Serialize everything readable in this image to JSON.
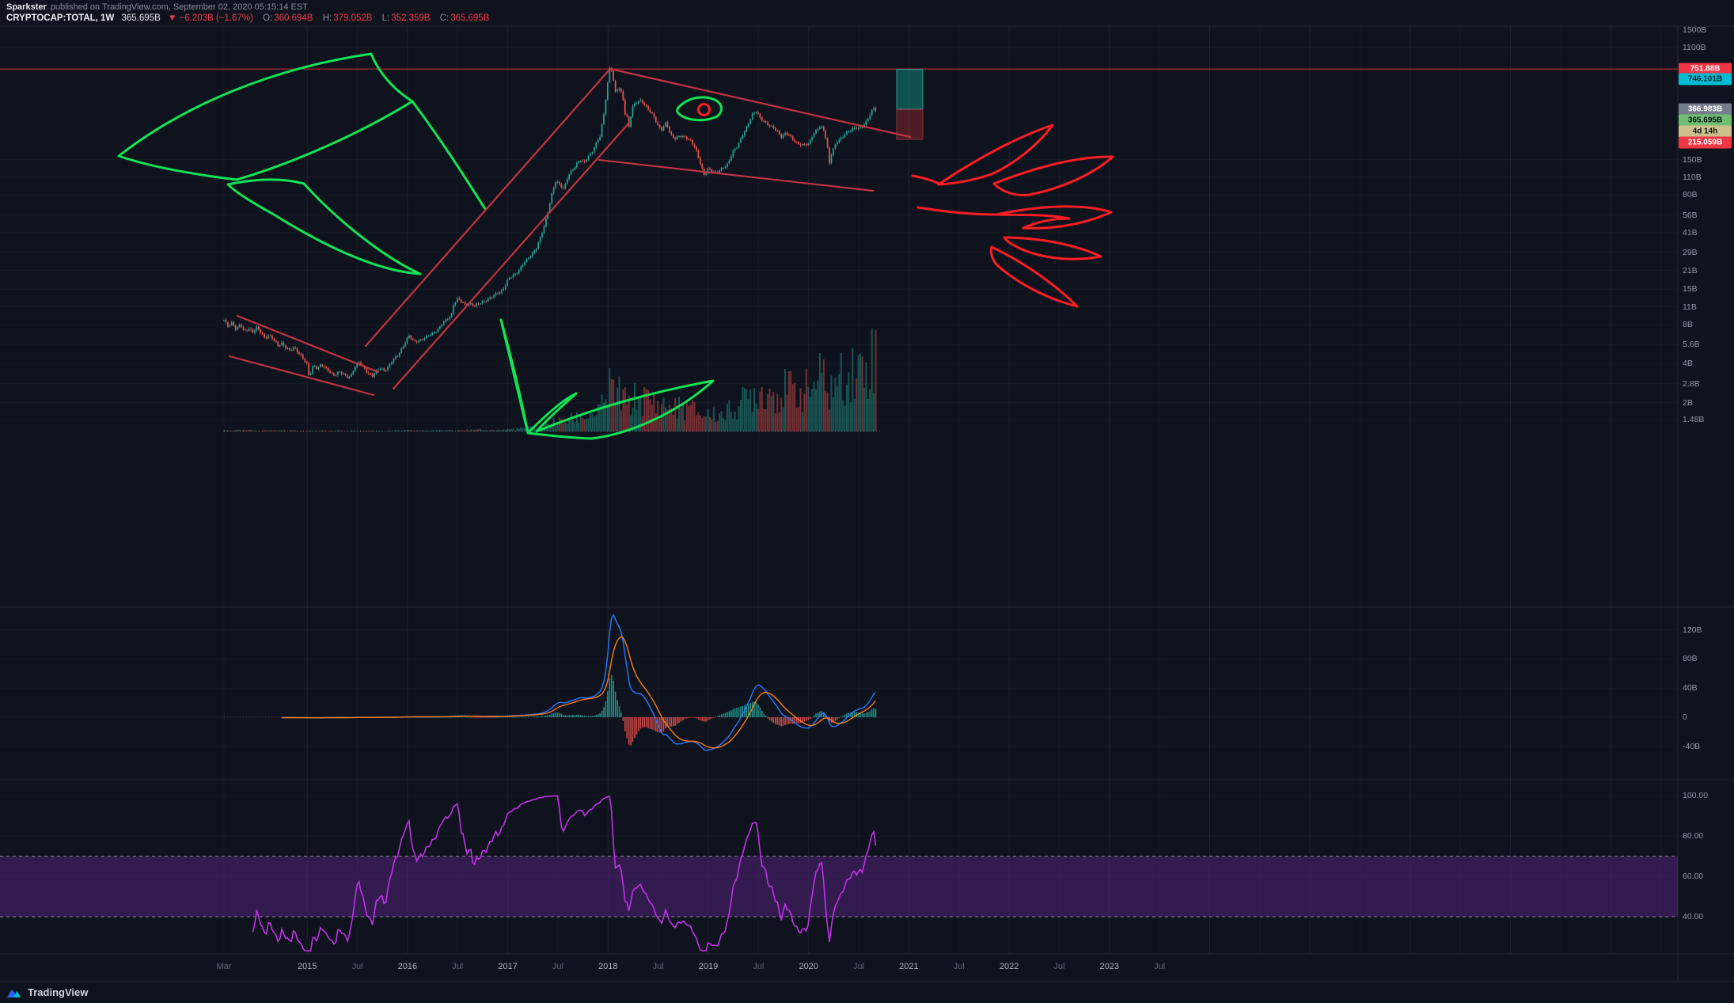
{
  "header": {
    "author": "Sparkster",
    "published_text": "published on TradingView.com, September 02, 2020 05:15:14 EST",
    "symbol_title": "CRYPTOCAP:TOTAL, 1W",
    "last_price": "365.695B",
    "change_text": "▼ −6.203B (−1.67%)",
    "ohlc": [
      {
        "label": "O:",
        "value": "360.694B"
      },
      {
        "label": "H:",
        "value": "379.052B"
      },
      {
        "label": "L:",
        "value": "352.359B"
      },
      {
        "label": "C:",
        "value": "365.695B"
      }
    ]
  },
  "footer": {
    "brand": "TradingView"
  },
  "colors": {
    "background": "#0f131d",
    "candle_up": "#26a69a",
    "candle_down": "#ef5350",
    "macd_line": "#2979ff",
    "macd_signal": "#f57f17",
    "rsi_line": "#c231e8",
    "rsi_band_fill": "rgba(87,35,129,0.5)",
    "drawing_green": "#10e455",
    "drawing_red_flame": "#fb1d23",
    "drawing_red_channel": "#c23440",
    "horizontal_line_red": "rgba(242,54,69,0.8)"
  },
  "price_scale": {
    "ticks": [
      {
        "v": 1500,
        "label": "1500B"
      },
      {
        "v": 1100,
        "label": "1100B"
      },
      {
        "v": 150,
        "label": "150B"
      },
      {
        "v": 110,
        "label": "110B"
      },
      {
        "v": 80,
        "label": "80B"
      },
      {
        "v": 56,
        "label": "56B"
      },
      {
        "v": 41,
        "label": "41B"
      },
      {
        "v": 29,
        "label": "29B"
      },
      {
        "v": 21,
        "label": "21B"
      },
      {
        "v": 15,
        "label": "15B"
      },
      {
        "v": 11,
        "label": "11B"
      },
      {
        "v": 8,
        "label": "8B"
      },
      {
        "v": 5.6,
        "label": "5.6B"
      },
      {
        "v": 4,
        "label": "4B"
      },
      {
        "v": 2.8,
        "label": "2.8B"
      },
      {
        "v": 2,
        "label": "2B"
      },
      {
        "v": 1.48,
        "label": "1.48B"
      }
    ],
    "tags": [
      {
        "label": "751.88B",
        "bg": "#f23645",
        "fg": "#ffffff",
        "name": "horizontal-line-price-tag"
      },
      {
        "label": "746.101B",
        "bg": "#00bcd4",
        "fg": "#06212a",
        "name": "position-target-price-tag"
      },
      {
        "label": "366.983B",
        "bg": "#757d8c",
        "fg": "#ffffff",
        "name": "position-entry-price-tag"
      },
      {
        "label": "365.695B",
        "bg": "#6fbf73",
        "fg": "#0c1016",
        "name": "last-price-tag"
      },
      {
        "label": "4d 14h",
        "bg": "#cfc08b",
        "fg": "#0c1016",
        "name": "bar-countdown-tag"
      },
      {
        "label": "215.059B",
        "bg": "#f23645",
        "fg": "#ffffff",
        "name": "position-stop-price-tag"
      }
    ]
  },
  "macd_scale": {
    "ticks": [
      {
        "v": 120,
        "label": "120B"
      },
      {
        "v": 80,
        "label": "80B"
      },
      {
        "v": 40,
        "label": "40B"
      },
      {
        "v": 0,
        "label": "0"
      },
      {
        "v": -40,
        "label": "-40B"
      }
    ]
  },
  "rsi_scale": {
    "ticks": [
      {
        "v": 100,
        "label": "100.00"
      },
      {
        "v": 80,
        "label": "80.00"
      },
      {
        "v": 60,
        "label": "60.00"
      },
      {
        "v": 40,
        "label": "40.00"
      }
    ]
  },
  "time_scale": {
    "ticks": [
      {
        "t": 2014.17,
        "label": "Mar",
        "major": false
      },
      {
        "t": 2015,
        "label": "2015",
        "major": true
      },
      {
        "t": 2015.5,
        "label": "Jul",
        "major": false
      },
      {
        "t": 2016,
        "label": "2016",
        "major": true
      },
      {
        "t": 2016.5,
        "label": "Jul",
        "major": false
      },
      {
        "t": 2017,
        "label": "2017",
        "major": true
      },
      {
        "t": 2017.5,
        "label": "Jul",
        "major": false
      },
      {
        "t": 2018,
        "label": "2018",
        "major": true
      },
      {
        "t": 2018.5,
        "label": "Jul",
        "major": false
      },
      {
        "t": 2019,
        "label": "2019",
        "major": true
      },
      {
        "t": 2019.5,
        "label": "Jul",
        "major": false
      },
      {
        "t": 2020,
        "label": "2020",
        "major": true
      },
      {
        "t": 2020.5,
        "label": "Jul",
        "major": false
      },
      {
        "t": 2021,
        "label": "2021",
        "major": true
      },
      {
        "t": 2021.5,
        "label": "Jul",
        "major": false
      },
      {
        "t": 2022,
        "label": "2022",
        "major": true
      },
      {
        "t": 2022.5,
        "label": "Jul",
        "major": false
      },
      {
        "t": 2023,
        "label": "2023",
        "major": true
      },
      {
        "t": 2023.5,
        "label": "Jul",
        "major": false
      }
    ]
  },
  "chart_data": {
    "type": "candlestick",
    "title": "CRYPTOCAP:TOTAL, 1W — Total Crypto Market Capitalization",
    "interval": "1W",
    "y_axis": {
      "scale": "log",
      "unit": "USD billions",
      "visible_tick_labels": [
        "1500B",
        "1100B",
        "150B",
        "110B",
        "80B",
        "56B",
        "41B",
        "29B",
        "21B",
        "15B",
        "11B",
        "8B",
        "5.6B",
        "4B",
        "2.8B",
        "2B",
        "1.48B"
      ]
    },
    "x_axis": {
      "visible_tick_labels": [
        "Mar",
        "2015",
        "Jul",
        "2016",
        "Jul",
        "2017",
        "Jul",
        "2018",
        "Jul",
        "2019",
        "Jul",
        "2020",
        "Jul",
        "2021",
        "Jul",
        "2022",
        "Jul",
        "2023",
        "Jul"
      ],
      "data_range_decimal_years": [
        2014.17,
        2020.67
      ]
    },
    "ohlc_last": {
      "open": 360.694,
      "high": 379.052,
      "low": 352.359,
      "close": 365.695
    },
    "market_cap_anchors": [
      [
        2014.17,
        8.6
      ],
      [
        2014.21,
        7.8
      ],
      [
        2014.25,
        8.4
      ],
      [
        2014.29,
        7.3
      ],
      [
        2014.33,
        8.0
      ],
      [
        2014.37,
        7.1
      ],
      [
        2014.42,
        7.5
      ],
      [
        2014.46,
        7.0
      ],
      [
        2014.5,
        7.6
      ],
      [
        2014.54,
        6.9
      ],
      [
        2014.58,
        6.3
      ],
      [
        2014.62,
        6.7
      ],
      [
        2014.67,
        6.0
      ],
      [
        2014.71,
        5.5
      ],
      [
        2014.75,
        5.8
      ],
      [
        2014.79,
        5.3
      ],
      [
        2014.83,
        5.0
      ],
      [
        2014.87,
        5.3
      ],
      [
        2014.92,
        4.8
      ],
      [
        2014.96,
        4.4
      ],
      [
        2015.0,
        3.9
      ],
      [
        2015.02,
        3.1
      ],
      [
        2015.06,
        3.9
      ],
      [
        2015.1,
        3.7
      ],
      [
        2015.14,
        3.95
      ],
      [
        2015.19,
        3.6
      ],
      [
        2015.23,
        3.45
      ],
      [
        2015.27,
        3.25
      ],
      [
        2015.31,
        3.45
      ],
      [
        2015.35,
        3.35
      ],
      [
        2015.4,
        3.15
      ],
      [
        2015.44,
        3.3
      ],
      [
        2015.48,
        3.85
      ],
      [
        2015.52,
        4.1
      ],
      [
        2015.56,
        3.75
      ],
      [
        2015.6,
        3.45
      ],
      [
        2015.65,
        3.2
      ],
      [
        2015.69,
        3.5
      ],
      [
        2015.73,
        3.7
      ],
      [
        2015.77,
        3.55
      ],
      [
        2015.81,
        3.8
      ],
      [
        2015.85,
        4.2
      ],
      [
        2015.9,
        4.6
      ],
      [
        2015.94,
        5.2
      ],
      [
        2015.98,
        5.9
      ],
      [
        2016.02,
        6.6
      ],
      [
        2016.06,
        5.9
      ],
      [
        2016.1,
        6.0
      ],
      [
        2016.15,
        6.2
      ],
      [
        2016.19,
        6.4
      ],
      [
        2016.23,
        6.7
      ],
      [
        2016.27,
        7.0
      ],
      [
        2016.31,
        7.5
      ],
      [
        2016.35,
        8.2
      ],
      [
        2016.4,
        8.8
      ],
      [
        2016.44,
        9.6
      ],
      [
        2016.46,
        11.6
      ],
      [
        2016.5,
        12.7
      ],
      [
        2016.54,
        11.9
      ],
      [
        2016.58,
        11.3
      ],
      [
        2016.62,
        11.7
      ],
      [
        2016.67,
        11.2
      ],
      [
        2016.71,
        11.5
      ],
      [
        2016.75,
        12.0
      ],
      [
        2016.79,
        12.5
      ],
      [
        2016.83,
        13.0
      ],
      [
        2016.87,
        13.5
      ],
      [
        2016.92,
        14.2
      ],
      [
        2016.96,
        15.4
      ],
      [
        2017.0,
        17.8
      ],
      [
        2017.04,
        18.7
      ],
      [
        2017.08,
        19.6
      ],
      [
        2017.12,
        21.6
      ],
      [
        2017.16,
        24.2
      ],
      [
        2017.2,
        25.6
      ],
      [
        2017.24,
        27.6
      ],
      [
        2017.28,
        31.0
      ],
      [
        2017.32,
        37.0
      ],
      [
        2017.36,
        45.0
      ],
      [
        2017.4,
        58.0
      ],
      [
        2017.44,
        82.0
      ],
      [
        2017.48,
        104.0
      ],
      [
        2017.52,
        96.0
      ],
      [
        2017.56,
        88.0
      ],
      [
        2017.6,
        112.0
      ],
      [
        2017.64,
        125.0
      ],
      [
        2017.68,
        136.0
      ],
      [
        2017.72,
        149.0
      ],
      [
        2017.76,
        141.0
      ],
      [
        2017.8,
        160.0
      ],
      [
        2017.84,
        172.0
      ],
      [
        2017.88,
        198.0
      ],
      [
        2017.92,
        226.0
      ],
      [
        2017.96,
        345.0
      ],
      [
        2018.0,
        615.0
      ],
      [
        2018.02,
        805.0
      ],
      [
        2018.04,
        715.0
      ],
      [
        2018.06,
        565.0
      ],
      [
        2018.08,
        465.0
      ],
      [
        2018.1,
        552.0
      ],
      [
        2018.13,
        505.0
      ],
      [
        2018.15,
        445.0
      ],
      [
        2018.17,
        342.0
      ],
      [
        2018.19,
        318.0
      ],
      [
        2018.21,
        265.0
      ],
      [
        2018.23,
        332.0
      ],
      [
        2018.25,
        390.0
      ],
      [
        2018.29,
        420.0
      ],
      [
        2018.33,
        434.0
      ],
      [
        2018.37,
        390.0
      ],
      [
        2018.42,
        348.0
      ],
      [
        2018.46,
        320.0
      ],
      [
        2018.5,
        274.0
      ],
      [
        2018.54,
        254.0
      ],
      [
        2018.58,
        290.0
      ],
      [
        2018.62,
        234.0
      ],
      [
        2018.67,
        220.0
      ],
      [
        2018.71,
        228.0
      ],
      [
        2018.75,
        223.0
      ],
      [
        2018.79,
        218.0
      ],
      [
        2018.83,
        210.0
      ],
      [
        2018.87,
        186.0
      ],
      [
        2018.92,
        138.0
      ],
      [
        2018.96,
        113.0
      ],
      [
        2019.0,
        130.0
      ],
      [
        2019.04,
        122.0
      ],
      [
        2019.08,
        117.0
      ],
      [
        2019.12,
        125.0
      ],
      [
        2019.16,
        133.0
      ],
      [
        2019.2,
        142.0
      ],
      [
        2019.24,
        170.0
      ],
      [
        2019.28,
        184.0
      ],
      [
        2019.32,
        214.0
      ],
      [
        2019.36,
        250.0
      ],
      [
        2019.4,
        284.0
      ],
      [
        2019.44,
        334.0
      ],
      [
        2019.48,
        354.0
      ],
      [
        2019.52,
        314.0
      ],
      [
        2019.56,
        296.0
      ],
      [
        2019.6,
        274.0
      ],
      [
        2019.65,
        264.0
      ],
      [
        2019.69,
        250.0
      ],
      [
        2019.73,
        224.0
      ],
      [
        2019.77,
        238.0
      ],
      [
        2019.81,
        230.0
      ],
      [
        2019.85,
        214.0
      ],
      [
        2019.9,
        198.0
      ],
      [
        2019.94,
        193.0
      ],
      [
        2020.0,
        199.0
      ],
      [
        2020.04,
        234.0
      ],
      [
        2020.08,
        254.0
      ],
      [
        2020.12,
        270.0
      ],
      [
        2020.16,
        246.0
      ],
      [
        2020.19,
        184.0
      ],
      [
        2020.21,
        138.0
      ],
      [
        2020.23,
        170.0
      ],
      [
        2020.25,
        184.0
      ],
      [
        2020.29,
        208.0
      ],
      [
        2020.33,
        220.0
      ],
      [
        2020.37,
        244.0
      ],
      [
        2020.42,
        254.0
      ],
      [
        2020.46,
        260.0
      ],
      [
        2020.5,
        264.0
      ],
      [
        2020.54,
        274.0
      ],
      [
        2020.58,
        300.0
      ],
      [
        2020.62,
        340.0
      ],
      [
        2020.65,
        374.0
      ],
      [
        2020.67,
        366.0
      ]
    ],
    "indicators": [
      {
        "name": "Volume",
        "note": "weekly histogram, teal/red by candle direction, largest bars in 2020"
      },
      {
        "name": "MACD(12,26,9)",
        "axis_ticks": [
          "120B",
          "80B",
          "40B",
          "0",
          "-40B"
        ],
        "peak_note": "large positive spike at Jan 2018"
      },
      {
        "name": "RSI-style oscillator",
        "axis_ticks": [
          "100.00",
          "80.00",
          "60.00",
          "40.00"
        ],
        "band": [
          40,
          70
        ]
      }
    ],
    "annotations": {
      "horizontal_line_price": 751.88,
      "long_position_tool": {
        "entry": 366.983,
        "target": 746.101,
        "stop": 215.059
      },
      "drawings": [
        "green phoenix wing upper-left",
        "green phoenix wing lower-left",
        "green wing bottom-center",
        "green eye with red pupil near 2018 peak",
        "red descending channel 2014-2015",
        "red ascending channel 2015-2018",
        "red descending channel 2018-2020",
        "red flame tail right side"
      ]
    }
  }
}
